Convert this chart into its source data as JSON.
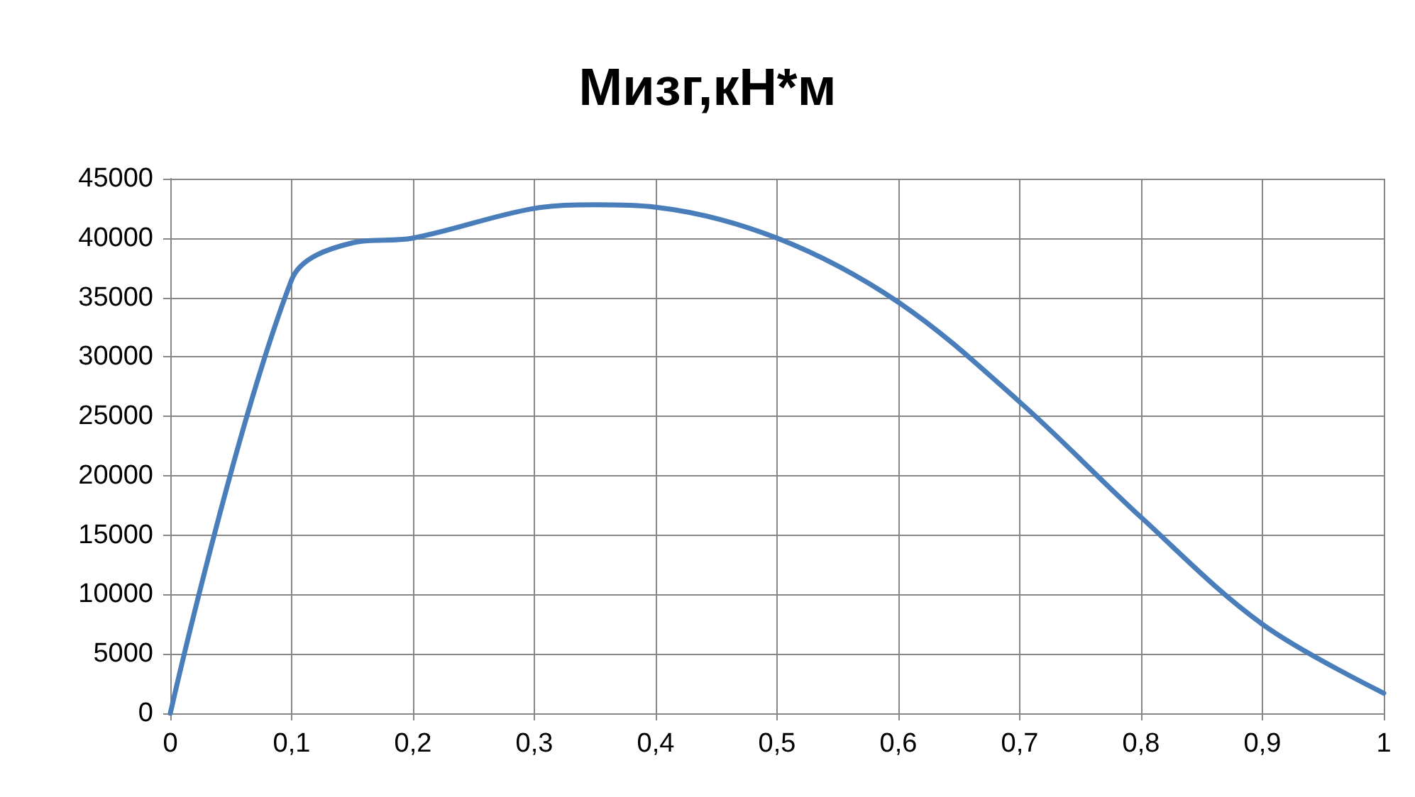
{
  "chart_data": {
    "type": "line",
    "title": "Мизг,кН*м",
    "x": [
      0,
      0.1,
      0.15,
      0.2,
      0.3,
      0.35,
      0.4,
      0.5,
      0.6,
      0.7,
      0.8,
      0.9,
      1
    ],
    "series": [
      {
        "color": "#4a7ebb",
        "values": [
          0,
          36500,
          39600,
          40000,
          42500,
          42800,
          42600,
          40000,
          34600,
          26200,
          16500,
          7500,
          1700
        ]
      }
    ],
    "xlim": [
      0,
      1
    ],
    "xticks": [
      0,
      {
        "value": 0.1,
        "label": "0,1"
      },
      {
        "value": 0.2,
        "label": "0,2"
      },
      {
        "value": 0.3,
        "label": "0,3"
      },
      {
        "value": 0.4,
        "label": "0,4"
      },
      {
        "value": 0.5,
        "label": "0,5"
      },
      {
        "value": 0.6,
        "label": "0,6"
      },
      {
        "value": 0.7,
        "label": "0,7"
      },
      {
        "value": 0.8,
        "label": "0,8"
      },
      {
        "value": 0.9,
        "label": "0,9"
      },
      1
    ],
    "ylim": [
      0,
      45000
    ],
    "yticks": [
      0,
      5000,
      10000,
      15000,
      20000,
      25000,
      30000,
      35000,
      40000,
      45000
    ],
    "grid": true,
    "marker": "none",
    "line_style": "solid"
  }
}
